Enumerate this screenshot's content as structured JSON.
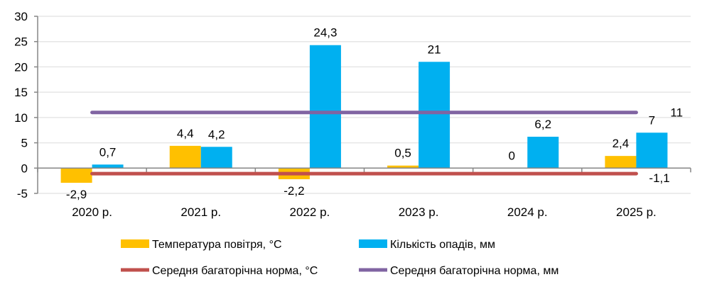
{
  "chart_data": {
    "type": "bar",
    "title": "",
    "xlabel": "",
    "ylabel": "",
    "categories": [
      "2020 р.",
      "2021 р.",
      "2022 р.",
      "2023 р.",
      "2024 р.",
      "2025 р."
    ],
    "ylim": [
      -5,
      30
    ],
    "yticks": [
      -5,
      0,
      5,
      10,
      15,
      20,
      25,
      30
    ],
    "grid": true,
    "legend_position": "bottom",
    "series": [
      {
        "name": "Температура повітря, °С",
        "kind": "bar",
        "color": "#FFC000",
        "values": [
          -2.9,
          4.4,
          -2.2,
          0.5,
          0,
          2.4
        ],
        "labels": [
          "-2,9",
          "4,4",
          "-2,2",
          "0,5",
          "0",
          "2,4"
        ]
      },
      {
        "name": "Кількість опадів, мм",
        "kind": "bar",
        "color": "#00B0F0",
        "values": [
          0.7,
          4.2,
          24.3,
          21,
          6.2,
          7
        ],
        "labels": [
          "0,7",
          "4,2",
          "24,3",
          "21",
          "6,2",
          "7"
        ]
      },
      {
        "name": "Середня багаторічна норма, °С",
        "kind": "line",
        "color": "#C0504D",
        "values": [
          -1.1,
          -1.1,
          -1.1,
          -1.1,
          -1.1,
          -1.1
        ],
        "end_label": "-1,1"
      },
      {
        "name": "Середня багаторічна норма, мм",
        "kind": "line",
        "color": "#8064A2",
        "values": [
          11,
          11,
          11,
          11,
          11,
          11
        ],
        "end_label": "11"
      }
    ]
  }
}
